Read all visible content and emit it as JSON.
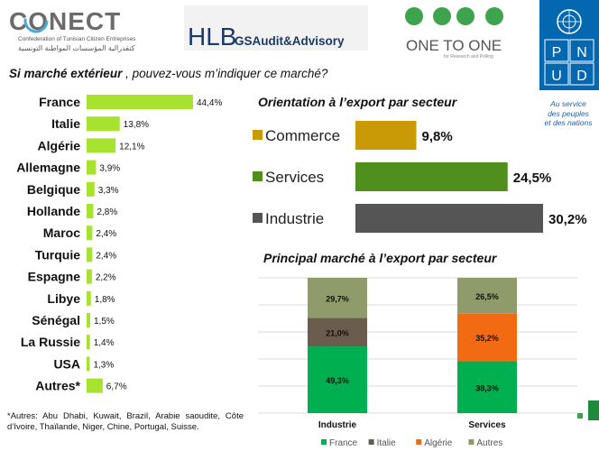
{
  "header": {
    "conect": {
      "name": "CONECT",
      "subtitle_fr": "Confederation of Tunisian Citizen Entreprises",
      "subtitle_ar": "كنفدرالية المؤسسات المواطنة التونسية"
    },
    "hlb": {
      "left": "HLB",
      "right": "GSAudit&Advisory"
    },
    "one_to_one": {
      "name": "ONE TO ONE",
      "tagline": "for Research and Polling",
      "dot_color": "#3da34d"
    },
    "pnud": {
      "letters": [
        "P",
        "N",
        "U",
        "D"
      ],
      "tagline": [
        "Au service",
        "des peuples",
        "et des nations"
      ],
      "color": "#0468b1"
    }
  },
  "question": {
    "bold": "Si marché extérieur",
    "rest": " , pouvez-vous m’indiquer ce marché?"
  },
  "note": "*Autres: Abu Dhabi, Kuwait, Brazil, Arabie saoudite, Côte d’Ivoire, Thaïlande, Niger, Chine, Portugal, Suisse.",
  "chart_data": [
    {
      "type": "bar",
      "orientation": "horizontal",
      "title": "Si marché extérieur , pouvez-vous m’indiquer ce marché?",
      "categories": [
        "France",
        "Italie",
        "Algérie",
        "Allemagne",
        "Belgique",
        "Hollande",
        "Maroc",
        "Turquie",
        "Espagne",
        "Libye",
        "Sénégal",
        "La Russie",
        "USA",
        "Autres*"
      ],
      "values": [
        44.4,
        13.8,
        12.1,
        3.9,
        3.3,
        2.8,
        2.4,
        2.4,
        2.2,
        1.8,
        1.5,
        1.4,
        1.3,
        6.7
      ],
      "labels": [
        "44,4%",
        "13,8%",
        "12,1%",
        "3,9%",
        "3,3%",
        "2,8%",
        "2,4%",
        "2,4%",
        "2,2%",
        "1,8%",
        "1,5%",
        "1,4%",
        "1,3%",
        "6,7%"
      ],
      "color": "#a6e22e"
    },
    {
      "type": "bar",
      "orientation": "horizontal",
      "title": "Orientation à l’export par secteur",
      "categories": [
        "Commerce",
        "Services",
        "Industrie"
      ],
      "values": [
        9.8,
        24.5,
        30.2
      ],
      "labels": [
        "9,8%",
        "24,5%",
        "30,2%"
      ],
      "colors": [
        "#c99a06",
        "#4e8f1e",
        "#555555"
      ],
      "legend": "left"
    },
    {
      "type": "bar",
      "stacked": true,
      "title": "Principal marché à l’export par secteur",
      "categories": [
        "Industrie",
        "Services"
      ],
      "series": [
        {
          "name": "France",
          "values": [
            49.3,
            38.3
          ],
          "labels": [
            "49,3%",
            "38,3%"
          ],
          "color": "#00b050"
        },
        {
          "name": "Italie",
          "values": [
            21.0,
            0
          ],
          "labels": [
            "21,0%",
            ""
          ],
          "color": "#6b5c4e"
        },
        {
          "name": "Algérie",
          "values": [
            0,
            35.2
          ],
          "labels": [
            "",
            "35,2%"
          ],
          "color": "#f26b12"
        },
        {
          "name": "Autres",
          "values": [
            29.7,
            26.5
          ],
          "labels": [
            "29,7%",
            "26,5%"
          ],
          "color": "#8f9b6a"
        }
      ],
      "grid": true,
      "legend": "bottom"
    }
  ]
}
